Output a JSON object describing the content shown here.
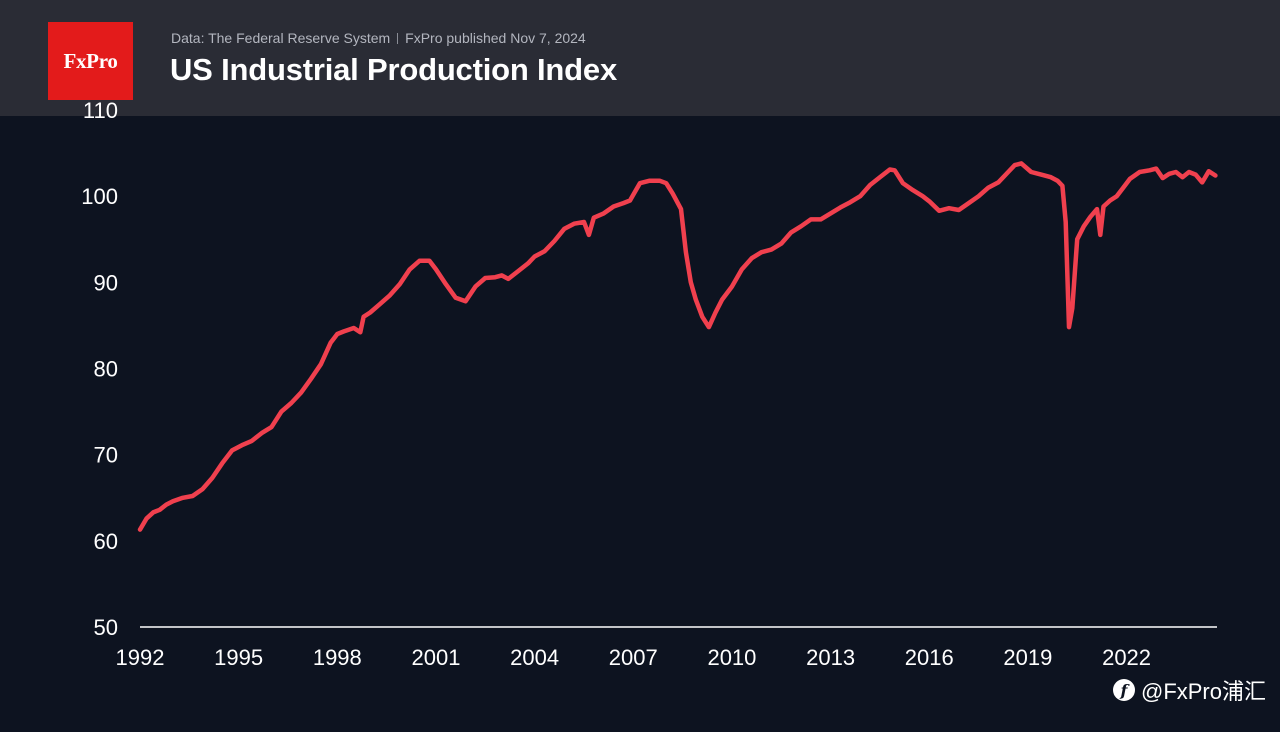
{
  "header": {
    "logo_text": "FxPro",
    "source": "Data: The Federal Reserve System",
    "publisher": "FxPro published Nov 7, 2024",
    "title": "US Industrial Production Index"
  },
  "watermark": {
    "icon": "facebook-icon",
    "text": "@FxPro浦汇"
  },
  "colors": {
    "background": "#0d1320",
    "header": "#2a2c35",
    "brand": "#e31b1b",
    "line": "#f0404e"
  },
  "chart_data": {
    "type": "line",
    "title": "US Industrial Production Index",
    "xlabel": "",
    "ylabel": "",
    "xlim": [
      1992.0,
      2024.75
    ],
    "ylim": [
      50,
      110
    ],
    "yticks": [
      50,
      60,
      70,
      80,
      90,
      100,
      110
    ],
    "ytick_labels": [
      "50",
      "60",
      "70",
      "80",
      "90",
      "100",
      "110"
    ],
    "xticks": [
      1992,
      1995,
      1998,
      2001,
      2004,
      2007,
      2010,
      2013,
      2016,
      2019,
      2022
    ],
    "xtick_labels": [
      "1992",
      "1995",
      "1998",
      "2001",
      "2004",
      "2007",
      "2010",
      "2013",
      "2016",
      "2019",
      "2022"
    ],
    "grid": false,
    "series": [
      {
        "x": [
          1992.0,
          1992.2,
          1992.4,
          1992.6,
          1992.8,
          1993.0,
          1993.3,
          1993.6,
          1993.9,
          1994.2,
          1994.5,
          1994.8,
          1995.1,
          1995.4,
          1995.7,
          1996.0,
          1996.3,
          1996.6,
          1996.9,
          1997.2,
          1997.5,
          1997.8,
          1998.0,
          1998.2,
          1998.5,
          1998.7,
          1998.8,
          1999.0,
          1999.3,
          1999.6,
          1999.9,
          2000.2,
          2000.5,
          2000.8,
          2001.0,
          2001.3,
          2001.6,
          2001.9,
          2002.2,
          2002.5,
          2002.8,
          2003.0,
          2003.2,
          2003.5,
          2003.8,
          2004.0,
          2004.3,
          2004.6,
          2004.9,
          2005.2,
          2005.5,
          2005.65,
          2005.8,
          2006.1,
          2006.4,
          2006.7,
          2006.9,
          2007.2,
          2007.5,
          2007.8,
          2008.0,
          2008.2,
          2008.45,
          2008.6,
          2008.75,
          2008.9,
          2009.1,
          2009.3,
          2009.5,
          2009.7,
          2010.0,
          2010.3,
          2010.6,
          2010.9,
          2011.2,
          2011.5,
          2011.8,
          2012.1,
          2012.4,
          2012.7,
          2013.0,
          2013.3,
          2013.6,
          2013.9,
          2014.2,
          2014.5,
          2014.8,
          2014.95,
          2015.2,
          2015.5,
          2015.8,
          2016.0,
          2016.3,
          2016.6,
          2016.9,
          2017.2,
          2017.5,
          2017.8,
          2018.1,
          2018.4,
          2018.6,
          2018.8,
          2019.1,
          2019.4,
          2019.7,
          2019.9,
          2020.05,
          2020.15,
          2020.25,
          2020.35,
          2020.5,
          2020.7,
          2020.9,
          2021.1,
          2021.2,
          2021.3,
          2021.5,
          2021.7,
          2021.9,
          2022.1,
          2022.4,
          2022.7,
          2022.9,
          2023.1,
          2023.3,
          2023.5,
          2023.7,
          2023.9,
          2024.1,
          2024.3,
          2024.5,
          2024.7
        ],
        "values": [
          61.3,
          62.6,
          63.3,
          63.6,
          64.2,
          64.6,
          65.0,
          65.2,
          66.0,
          67.3,
          69.0,
          70.5,
          71.1,
          71.6,
          72.5,
          73.2,
          75.0,
          76.0,
          77.2,
          78.8,
          80.5,
          83.0,
          84.0,
          84.3,
          84.7,
          84.2,
          86.0,
          86.5,
          87.5,
          88.5,
          89.8,
          91.5,
          92.5,
          92.5,
          91.5,
          89.8,
          88.2,
          87.8,
          89.5,
          90.5,
          90.6,
          90.8,
          90.4,
          91.3,
          92.2,
          93.0,
          93.6,
          94.8,
          96.2,
          96.8,
          97.0,
          95.5,
          97.5,
          98.0,
          98.8,
          99.2,
          99.5,
          101.5,
          101.8,
          101.8,
          101.5,
          100.3,
          98.5,
          93.5,
          90.0,
          88.0,
          86.0,
          84.8,
          86.5,
          88.0,
          89.5,
          91.5,
          92.8,
          93.5,
          93.8,
          94.5,
          95.8,
          96.5,
          97.3,
          97.3,
          98.0,
          98.7,
          99.3,
          100.0,
          101.3,
          102.2,
          103.1,
          103.0,
          101.5,
          100.7,
          100.0,
          99.4,
          98.3,
          98.6,
          98.4,
          99.2,
          100.0,
          101.0,
          101.6,
          102.8,
          103.6,
          103.8,
          102.8,
          102.5,
          102.2,
          101.8,
          101.2,
          97.0,
          84.8,
          87.0,
          95.0,
          96.5,
          97.6,
          98.5,
          95.5,
          98.8,
          99.5,
          100.0,
          101.0,
          102.0,
          102.8,
          103.0,
          103.2,
          102.1,
          102.6,
          102.8,
          102.2,
          102.8,
          102.5,
          101.6,
          102.9,
          102.4
        ]
      }
    ]
  }
}
